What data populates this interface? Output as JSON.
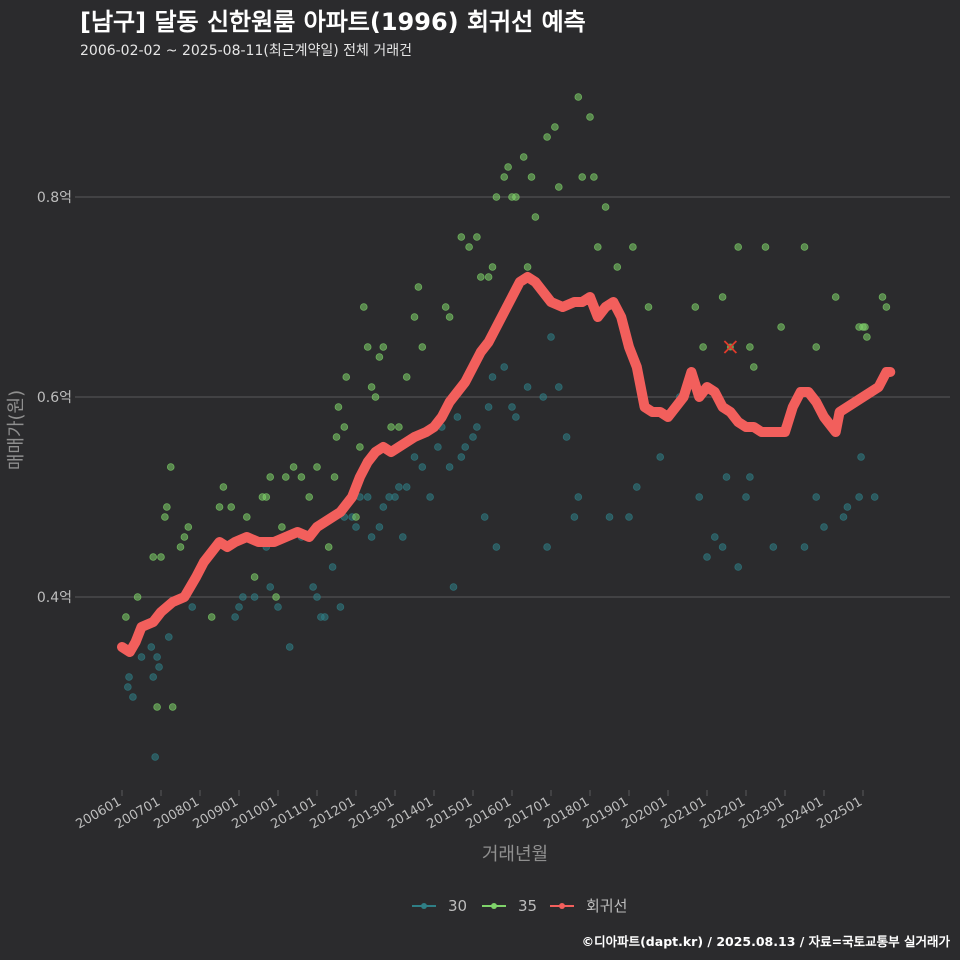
{
  "title": "[남구] 달동 신한원룸 아파트(1996) 회귀선 예측",
  "subtitle": "2006-02-02 ~ 2025-08-11(최근계약일) 전체 거래건",
  "credit": "©디아파트(dapt.kr) / 2025.08.13 / 자료=국토교통부 실거래가",
  "colors": {
    "background": "#2b2b2d",
    "grid": "#5a5a5a",
    "s30": "#2f7f86",
    "s35": "#7fd36a",
    "regression": "#f25f5c",
    "text": "#bdbdbd"
  },
  "chart_data": {
    "type": "scatter",
    "xlabel": "거래년월",
    "ylabel": "매매가(원)",
    "x_range": [
      2006.0,
      2025.8
    ],
    "ylim": [
      0.22,
      0.92
    ],
    "yticks": [
      {
        "value": 0.4,
        "label": "0.4억"
      },
      {
        "value": 0.6,
        "label": "0.6억"
      },
      {
        "value": 0.8,
        "label": "0.8억"
      }
    ],
    "xticks": [
      "200601",
      "200701",
      "200801",
      "200901",
      "201001",
      "201101",
      "201201",
      "201301",
      "201401",
      "201501",
      "201601",
      "201701",
      "201801",
      "201901",
      "202001",
      "202101",
      "202201",
      "202301",
      "202401",
      "202501"
    ],
    "grid": true,
    "legend_position": "bottom",
    "legend": [
      "30",
      "35",
      "회귀선"
    ],
    "series": [
      {
        "name": "30",
        "points": [
          [
            2006.15,
            0.31
          ],
          [
            2006.18,
            0.32
          ],
          [
            2006.28,
            0.3
          ],
          [
            2006.5,
            0.34
          ],
          [
            2006.75,
            0.35
          ],
          [
            2006.8,
            0.32
          ],
          [
            2006.9,
            0.34
          ],
          [
            2006.95,
            0.33
          ],
          [
            2007.2,
            0.36
          ],
          [
            2006.85,
            0.24
          ],
          [
            2007.8,
            0.39
          ],
          [
            2008.9,
            0.38
          ],
          [
            2009.0,
            0.39
          ],
          [
            2009.1,
            0.4
          ],
          [
            2009.4,
            0.4
          ],
          [
            2009.7,
            0.45
          ],
          [
            2009.8,
            0.41
          ],
          [
            2010.0,
            0.39
          ],
          [
            2010.3,
            0.35
          ],
          [
            2010.6,
            0.46
          ],
          [
            2010.9,
            0.41
          ],
          [
            2011.0,
            0.4
          ],
          [
            2011.1,
            0.38
          ],
          [
            2011.2,
            0.38
          ],
          [
            2011.4,
            0.43
          ],
          [
            2011.6,
            0.39
          ],
          [
            2011.7,
            0.48
          ],
          [
            2011.9,
            0.48
          ],
          [
            2012.0,
            0.47
          ],
          [
            2012.1,
            0.5
          ],
          [
            2012.3,
            0.5
          ],
          [
            2012.4,
            0.46
          ],
          [
            2012.6,
            0.47
          ],
          [
            2012.7,
            0.49
          ],
          [
            2012.85,
            0.5
          ],
          [
            2013.0,
            0.5
          ],
          [
            2013.1,
            0.51
          ],
          [
            2013.2,
            0.46
          ],
          [
            2013.3,
            0.51
          ],
          [
            2013.5,
            0.54
          ],
          [
            2013.7,
            0.53
          ],
          [
            2013.9,
            0.5
          ],
          [
            2014.1,
            0.55
          ],
          [
            2014.2,
            0.57
          ],
          [
            2014.4,
            0.53
          ],
          [
            2014.5,
            0.41
          ],
          [
            2014.6,
            0.58
          ],
          [
            2014.7,
            0.54
          ],
          [
            2014.8,
            0.55
          ],
          [
            2015.0,
            0.56
          ],
          [
            2015.1,
            0.57
          ],
          [
            2015.3,
            0.48
          ],
          [
            2015.4,
            0.59
          ],
          [
            2015.5,
            0.62
          ],
          [
            2015.6,
            0.45
          ],
          [
            2015.8,
            0.63
          ],
          [
            2016.0,
            0.59
          ],
          [
            2016.1,
            0.58
          ],
          [
            2016.4,
            0.61
          ],
          [
            2016.8,
            0.6
          ],
          [
            2016.9,
            0.45
          ],
          [
            2017.0,
            0.66
          ],
          [
            2017.2,
            0.61
          ],
          [
            2017.4,
            0.56
          ],
          [
            2017.6,
            0.48
          ],
          [
            2017.7,
            0.5
          ],
          [
            2018.5,
            0.48
          ],
          [
            2019.0,
            0.48
          ],
          [
            2019.2,
            0.51
          ],
          [
            2019.8,
            0.54
          ],
          [
            2020.3,
            0.6
          ],
          [
            2020.8,
            0.5
          ],
          [
            2021.0,
            0.44
          ],
          [
            2021.2,
            0.46
          ],
          [
            2021.4,
            0.45
          ],
          [
            2021.5,
            0.52
          ],
          [
            2021.8,
            0.43
          ],
          [
            2022.0,
            0.5
          ],
          [
            2022.1,
            0.52
          ],
          [
            2022.7,
            0.45
          ],
          [
            2023.0,
            0.57
          ],
          [
            2023.5,
            0.45
          ],
          [
            2023.8,
            0.5
          ],
          [
            2024.0,
            0.47
          ],
          [
            2024.5,
            0.48
          ],
          [
            2024.6,
            0.49
          ],
          [
            2024.9,
            0.5
          ],
          [
            2024.95,
            0.54
          ],
          [
            2025.3,
            0.5
          ]
        ]
      },
      {
        "name": "35",
        "points": [
          [
            2006.1,
            0.38
          ],
          [
            2006.4,
            0.4
          ],
          [
            2006.8,
            0.44
          ],
          [
            2006.9,
            0.29
          ],
          [
            2007.0,
            0.44
          ],
          [
            2007.1,
            0.48
          ],
          [
            2007.15,
            0.49
          ],
          [
            2007.25,
            0.53
          ],
          [
            2007.3,
            0.29
          ],
          [
            2007.5,
            0.45
          ],
          [
            2007.6,
            0.46
          ],
          [
            2007.7,
            0.47
          ],
          [
            2008.3,
            0.38
          ],
          [
            2008.5,
            0.49
          ],
          [
            2008.6,
            0.51
          ],
          [
            2008.8,
            0.49
          ],
          [
            2009.2,
            0.48
          ],
          [
            2009.4,
            0.42
          ],
          [
            2009.6,
            0.5
          ],
          [
            2009.7,
            0.5
          ],
          [
            2009.8,
            0.52
          ],
          [
            2009.95,
            0.4
          ],
          [
            2010.1,
            0.47
          ],
          [
            2010.2,
            0.52
          ],
          [
            2010.4,
            0.53
          ],
          [
            2010.6,
            0.52
          ],
          [
            2010.8,
            0.5
          ],
          [
            2011.0,
            0.53
          ],
          [
            2011.3,
            0.45
          ],
          [
            2011.45,
            0.52
          ],
          [
            2011.5,
            0.56
          ],
          [
            2011.55,
            0.59
          ],
          [
            2011.7,
            0.57
          ],
          [
            2011.75,
            0.62
          ],
          [
            2012.0,
            0.48
          ],
          [
            2012.1,
            0.55
          ],
          [
            2012.2,
            0.69
          ],
          [
            2012.3,
            0.65
          ],
          [
            2012.4,
            0.61
          ],
          [
            2012.5,
            0.6
          ],
          [
            2012.6,
            0.64
          ],
          [
            2012.7,
            0.65
          ],
          [
            2012.9,
            0.57
          ],
          [
            2013.1,
            0.57
          ],
          [
            2013.3,
            0.62
          ],
          [
            2013.5,
            0.68
          ],
          [
            2013.6,
            0.71
          ],
          [
            2013.7,
            0.65
          ],
          [
            2014.0,
            0.57
          ],
          [
            2014.3,
            0.69
          ],
          [
            2014.4,
            0.68
          ],
          [
            2014.7,
            0.76
          ],
          [
            2014.9,
            0.75
          ],
          [
            2015.1,
            0.76
          ],
          [
            2015.2,
            0.72
          ],
          [
            2015.4,
            0.72
          ],
          [
            2015.5,
            0.73
          ],
          [
            2015.6,
            0.8
          ],
          [
            2015.8,
            0.82
          ],
          [
            2015.9,
            0.83
          ],
          [
            2016.0,
            0.8
          ],
          [
            2016.1,
            0.8
          ],
          [
            2016.3,
            0.84
          ],
          [
            2016.4,
            0.73
          ],
          [
            2016.5,
            0.82
          ],
          [
            2016.6,
            0.78
          ],
          [
            2016.9,
            0.86
          ],
          [
            2017.1,
            0.87
          ],
          [
            2017.2,
            0.81
          ],
          [
            2017.7,
            0.9
          ],
          [
            2017.8,
            0.82
          ],
          [
            2018.0,
            0.88
          ],
          [
            2018.1,
            0.82
          ],
          [
            2018.2,
            0.75
          ],
          [
            2018.4,
            0.79
          ],
          [
            2018.7,
            0.73
          ],
          [
            2019.1,
            0.75
          ],
          [
            2019.5,
            0.69
          ],
          [
            2020.7,
            0.69
          ],
          [
            2020.9,
            0.65
          ],
          [
            2021.4,
            0.7
          ],
          [
            2021.8,
            0.75
          ],
          [
            2022.1,
            0.65
          ],
          [
            2022.2,
            0.63
          ],
          [
            2022.5,
            0.75
          ],
          [
            2022.9,
            0.67
          ],
          [
            2023.5,
            0.75
          ],
          [
            2023.8,
            0.65
          ],
          [
            2024.3,
            0.7
          ],
          [
            2024.9,
            0.67
          ],
          [
            2025.0,
            0.67
          ],
          [
            2025.05,
            0.67
          ],
          [
            2025.1,
            0.66
          ],
          [
            2025.5,
            0.7
          ],
          [
            2025.6,
            0.69
          ]
        ]
      },
      {
        "name": "회귀선",
        "points": [
          [
            2006.0,
            0.35
          ],
          [
            2006.2,
            0.345
          ],
          [
            2006.35,
            0.355
          ],
          [
            2006.5,
            0.37
          ],
          [
            2006.8,
            0.375
          ],
          [
            2007.0,
            0.385
          ],
          [
            2007.3,
            0.395
          ],
          [
            2007.6,
            0.4
          ],
          [
            2007.9,
            0.42
          ],
          [
            2008.1,
            0.435
          ],
          [
            2008.3,
            0.445
          ],
          [
            2008.5,
            0.455
          ],
          [
            2008.7,
            0.45
          ],
          [
            2008.9,
            0.455
          ],
          [
            2009.2,
            0.46
          ],
          [
            2009.5,
            0.455
          ],
          [
            2009.9,
            0.455
          ],
          [
            2010.2,
            0.46
          ],
          [
            2010.5,
            0.465
          ],
          [
            2010.8,
            0.46
          ],
          [
            2011.0,
            0.47
          ],
          [
            2011.2,
            0.475
          ],
          [
            2011.4,
            0.48
          ],
          [
            2011.6,
            0.485
          ],
          [
            2011.9,
            0.5
          ],
          [
            2012.1,
            0.52
          ],
          [
            2012.3,
            0.535
          ],
          [
            2012.5,
            0.545
          ],
          [
            2012.7,
            0.55
          ],
          [
            2012.9,
            0.545
          ],
          [
            2013.1,
            0.55
          ],
          [
            2013.3,
            0.555
          ],
          [
            2013.5,
            0.56
          ],
          [
            2013.8,
            0.565
          ],
          [
            2014.0,
            0.57
          ],
          [
            2014.2,
            0.58
          ],
          [
            2014.4,
            0.595
          ],
          [
            2014.6,
            0.605
          ],
          [
            2014.8,
            0.615
          ],
          [
            2015.0,
            0.63
          ],
          [
            2015.2,
            0.645
          ],
          [
            2015.4,
            0.655
          ],
          [
            2015.6,
            0.67
          ],
          [
            2015.8,
            0.685
          ],
          [
            2016.0,
            0.7
          ],
          [
            2016.2,
            0.715
          ],
          [
            2016.4,
            0.72
          ],
          [
            2016.6,
            0.715
          ],
          [
            2016.8,
            0.705
          ],
          [
            2017.0,
            0.695
          ],
          [
            2017.3,
            0.69
          ],
          [
            2017.6,
            0.695
          ],
          [
            2017.8,
            0.695
          ],
          [
            2018.0,
            0.7
          ],
          [
            2018.2,
            0.68
          ],
          [
            2018.4,
            0.69
          ],
          [
            2018.6,
            0.695
          ],
          [
            2018.8,
            0.68
          ],
          [
            2019.0,
            0.65
          ],
          [
            2019.2,
            0.63
          ],
          [
            2019.4,
            0.59
          ],
          [
            2019.6,
            0.585
          ],
          [
            2019.8,
            0.585
          ],
          [
            2020.0,
            0.58
          ],
          [
            2020.2,
            0.59
          ],
          [
            2020.4,
            0.6
          ],
          [
            2020.6,
            0.625
          ],
          [
            2020.8,
            0.6
          ],
          [
            2021.0,
            0.61
          ],
          [
            2021.2,
            0.605
          ],
          [
            2021.4,
            0.59
          ],
          [
            2021.6,
            0.585
          ],
          [
            2021.8,
            0.575
          ],
          [
            2022.0,
            0.57
          ],
          [
            2022.2,
            0.57
          ],
          [
            2022.4,
            0.565
          ],
          [
            2022.6,
            0.565
          ],
          [
            2022.8,
            0.565
          ],
          [
            2023.0,
            0.565
          ],
          [
            2023.2,
            0.59
          ],
          [
            2023.4,
            0.605
          ],
          [
            2023.6,
            0.605
          ],
          [
            2023.8,
            0.595
          ],
          [
            2024.0,
            0.58
          ],
          [
            2024.2,
            0.57
          ],
          [
            2024.3,
            0.565
          ],
          [
            2024.4,
            0.585
          ],
          [
            2024.6,
            0.59
          ],
          [
            2024.8,
            0.595
          ],
          [
            2025.0,
            0.6
          ],
          [
            2025.2,
            0.605
          ],
          [
            2025.4,
            0.61
          ],
          [
            2025.6,
            0.625
          ],
          [
            2025.7,
            0.625
          ]
        ]
      }
    ],
    "outlier_marker": [
      2021.6,
      0.65
    ]
  }
}
